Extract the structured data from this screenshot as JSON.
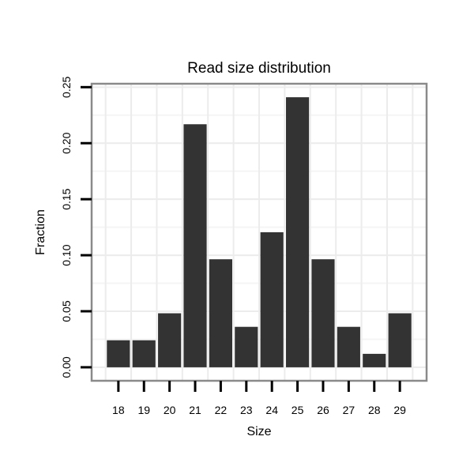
{
  "chart_data": {
    "type": "bar",
    "title": "Read size distribution",
    "xlabel": "Size",
    "ylabel": "Fraction",
    "categories": [
      18,
      19,
      20,
      21,
      22,
      23,
      24,
      25,
      26,
      27,
      28,
      29
    ],
    "values": [
      0.0241,
      0.0241,
      0.0482,
      0.2169,
      0.0964,
      0.0361,
      0.1205,
      0.241,
      0.0964,
      0.0361,
      0.012,
      0.0482
    ],
    "x_tick_labels": [
      "18",
      "19",
      "20",
      "21",
      "22",
      "23",
      "24",
      "25",
      "26",
      "27",
      "28",
      "29"
    ],
    "y_tick_labels": [
      "0.00",
      "0.05",
      "0.10",
      "0.15",
      "0.20",
      "0.25"
    ],
    "y_tick_values": [
      0.0,
      0.05,
      0.1,
      0.15,
      0.2,
      0.25
    ],
    "ylim": [
      0,
      0.25
    ],
    "grid": "horizontal major every 0.05 and minor every 0.025; vertical minor between each size",
    "legend": "none",
    "colors": {
      "bar_fill": "#333333",
      "panel_border": "#8a8a8a",
      "grid_major": "#ececec",
      "grid_minor": "#f5f5f5",
      "tick_mark": "#000000",
      "text": "#000000",
      "background": "#ffffff"
    }
  }
}
